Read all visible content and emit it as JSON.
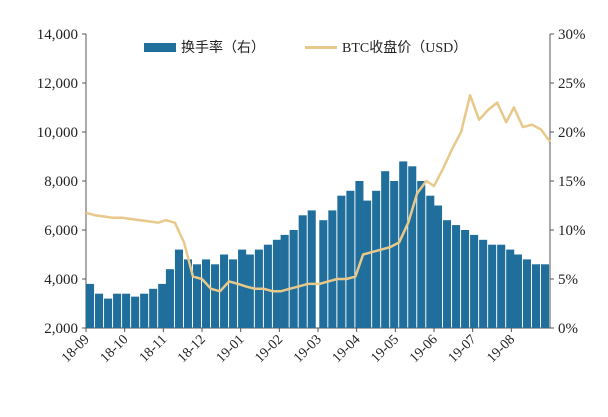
{
  "chart_data": {
    "type": "bar+line",
    "title": "",
    "x_tick_labels": [
      "18-09",
      "18-10",
      "18-11",
      "18-12",
      "19-01",
      "19-02",
      "19-03",
      "19-04",
      "19-05",
      "19-06",
      "19-07",
      "19-08"
    ],
    "y_left": {
      "ticks": [
        "2,000",
        "4,000",
        "6,000",
        "8,000",
        "10,000",
        "12,000",
        "14,000"
      ],
      "range": [
        2000,
        14000
      ]
    },
    "y_right": {
      "ticks": [
        "0%",
        "5%",
        "10%",
        "15%",
        "20%",
        "25%",
        "30%"
      ],
      "range": [
        0,
        30
      ]
    },
    "legend": {
      "position": "top",
      "items": [
        "换手率（右）",
        "BTC收盘价（USD）"
      ]
    },
    "colors": {
      "bars": "#1f6e9b",
      "line": "#e8c98b"
    },
    "series": [
      {
        "name": "换手率（右）",
        "axis": "right",
        "type": "bar",
        "x": [
          "2018-09-01",
          "2018-09-08",
          "2018-09-15",
          "2018-09-22",
          "2018-09-29",
          "2018-10-06",
          "2018-10-13",
          "2018-10-20",
          "2018-10-27",
          "2018-11-03",
          "2018-11-10",
          "2018-11-17",
          "2018-11-24",
          "2018-12-01",
          "2018-12-08",
          "2018-12-15",
          "2018-12-22",
          "2018-12-29",
          "2019-01-05",
          "2019-01-12",
          "2019-01-19",
          "2019-01-26",
          "2019-02-02",
          "2019-02-09",
          "2019-02-16",
          "2019-02-23",
          "2019-03-02",
          "2019-03-09",
          "2019-03-16",
          "2019-03-23",
          "2019-03-30",
          "2019-04-06",
          "2019-04-13",
          "2019-04-20",
          "2019-04-27",
          "2019-05-04",
          "2019-05-11",
          "2019-05-18",
          "2019-05-25",
          "2019-06-01",
          "2019-06-08",
          "2019-06-15",
          "2019-06-22",
          "2019-06-29",
          "2019-07-06",
          "2019-07-13",
          "2019-07-20",
          "2019-07-27",
          "2019-08-03",
          "2019-08-10",
          "2019-08-17",
          "2019-08-24",
          "2019-08-31"
        ],
        "values": [
          4.5,
          3.5,
          3.0,
          3.5,
          3.5,
          3.2,
          3.5,
          4.0,
          4.5,
          6.0,
          8.0,
          7.0,
          6.5,
          7.0,
          6.5,
          7.5,
          7.0,
          8.0,
          7.5,
          8.0,
          8.5,
          9.0,
          9.5,
          10.0,
          11.5,
          12.0,
          11.0,
          12.0,
          13.5,
          14.0,
          15.0,
          13.0,
          14.0,
          16.0,
          15.0,
          17.0,
          16.5,
          15.0,
          13.5,
          12.5,
          11.0,
          10.5,
          10.0,
          9.5,
          9.0,
          8.5,
          8.5,
          8.0,
          7.5,
          7.0,
          6.5,
          6.5,
          6.0
        ]
      },
      {
        "name": "BTC收盘价（USD）",
        "axis": "left",
        "type": "line",
        "x": [
          "2018-09-01",
          "2018-09-08",
          "2018-09-15",
          "2018-09-22",
          "2018-09-29",
          "2018-10-06",
          "2018-10-13",
          "2018-10-20",
          "2018-10-27",
          "2018-11-03",
          "2018-11-10",
          "2018-11-17",
          "2018-11-24",
          "2018-12-01",
          "2018-12-08",
          "2018-12-15",
          "2018-12-22",
          "2018-12-29",
          "2019-01-05",
          "2019-01-12",
          "2019-01-19",
          "2019-01-26",
          "2019-02-02",
          "2019-02-09",
          "2019-02-16",
          "2019-02-23",
          "2019-03-02",
          "2019-03-09",
          "2019-03-16",
          "2019-03-23",
          "2019-03-30",
          "2019-04-06",
          "2019-04-13",
          "2019-04-20",
          "2019-04-27",
          "2019-05-04",
          "2019-05-11",
          "2019-05-18",
          "2019-05-25",
          "2019-06-01",
          "2019-06-08",
          "2019-06-15",
          "2019-06-22",
          "2019-06-29",
          "2019-07-06",
          "2019-07-13",
          "2019-07-20",
          "2019-07-27",
          "2019-08-03",
          "2019-08-10",
          "2019-08-17",
          "2019-08-24",
          "2019-08-31"
        ],
        "values": [
          6700,
          6600,
          6550,
          6500,
          6500,
          6450,
          6400,
          6350,
          6300,
          6400,
          6300,
          5500,
          4100,
          4000,
          3600,
          3500,
          3900,
          3800,
          3700,
          3600,
          3600,
          3500,
          3500,
          3600,
          3700,
          3800,
          3800,
          3900,
          4000,
          4000,
          4100,
          5000,
          5100,
          5200,
          5300,
          5500,
          6300,
          7500,
          8000,
          7800,
          8500,
          9300,
          10000,
          11500,
          10500,
          10900,
          11200,
          10400,
          11000,
          10200,
          10300,
          10100,
          9600
        ]
      }
    ]
  }
}
